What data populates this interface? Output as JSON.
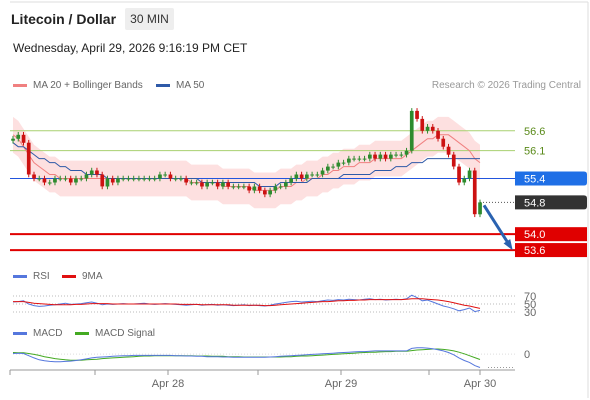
{
  "header": {
    "title": "Litecoin / Dollar",
    "interval": "30 MIN",
    "datetime": "Wednesday, April 29, 2026 9:16:19 PM CET"
  },
  "legend": {
    "price": [
      {
        "label": "MA 20 + Bollinger Bands",
        "color": "#f08080"
      },
      {
        "label": "MA 50",
        "color": "#2f5aa8"
      }
    ],
    "rsi": [
      {
        "label": "RSI",
        "color": "#5577dd"
      },
      {
        "label": "9MA",
        "color": "#e01010"
      }
    ],
    "macd": [
      {
        "label": "MACD",
        "color": "#5577dd"
      },
      {
        "label": "MACD Signal",
        "color": "#44aa22"
      }
    ]
  },
  "copyright": "Research © 2026 Trading Central",
  "colors": {
    "up": "#2e8b2e",
    "down": "#cc1111",
    "resistance": "#a8d070",
    "support": "#e00000",
    "pivot": "#2255dd",
    "current_price_bg": "#333333",
    "band_fill": "#fde0e0",
    "arrow": "#2a62b0"
  },
  "chart_data": [
    {
      "type": "candlestick",
      "name": "price",
      "x_ticks": [
        "Apr 28",
        "Apr 29",
        "Apr 30"
      ],
      "ylim": [
        53.3,
        57.5
      ],
      "levels": [
        {
          "label": "56.6",
          "value": 56.6,
          "kind": "resistance"
        },
        {
          "label": "56.1",
          "value": 56.1,
          "kind": "resistance"
        },
        {
          "label": "55.4",
          "value": 55.4,
          "kind": "pivot"
        },
        {
          "label": "54.8",
          "value": 54.8,
          "kind": "current"
        },
        {
          "label": "54.0",
          "value": 54.0,
          "kind": "support"
        },
        {
          "label": "53.6",
          "value": 53.6,
          "kind": "support"
        }
      ],
      "closes": [
        56.4,
        56.5,
        56.3,
        55.5,
        55.4,
        55.4,
        55.3,
        55.3,
        55.4,
        55.4,
        55.4,
        55.3,
        55.4,
        55.4,
        55.5,
        55.6,
        55.5,
        55.2,
        55.4,
        55.3,
        55.4,
        55.4,
        55.4,
        55.4,
        55.4,
        55.4,
        55.4,
        55.4,
        55.5,
        55.5,
        55.4,
        55.4,
        55.4,
        55.3,
        55.3,
        55.3,
        55.2,
        55.3,
        55.3,
        55.2,
        55.3,
        55.2,
        55.2,
        55.2,
        55.2,
        55.1,
        55.2,
        55.1,
        55.0,
        55.1,
        55.2,
        55.2,
        55.3,
        55.4,
        55.5,
        55.4,
        55.5,
        55.5,
        55.5,
        55.6,
        55.7,
        55.7,
        55.8,
        55.8,
        55.9,
        55.9,
        55.9,
        55.9,
        56.0,
        55.9,
        56.0,
        55.9,
        56.0,
        56.0,
        56.0,
        56.1,
        57.1,
        56.9,
        56.6,
        56.7,
        56.6,
        56.4,
        56.2,
        56.0,
        55.7,
        55.3,
        55.4,
        55.6,
        54.5,
        54.8
      ],
      "ma20": [
        56.5,
        56.4,
        56.2,
        56.0,
        55.8,
        55.7,
        55.6,
        55.5,
        55.5,
        55.4,
        55.4,
        55.4,
        55.4,
        55.4,
        55.4,
        55.4,
        55.4,
        55.4,
        55.4,
        55.4,
        55.4,
        55.4,
        55.4,
        55.4,
        55.4,
        55.4,
        55.4,
        55.4,
        55.4,
        55.4,
        55.4,
        55.4,
        55.4,
        55.4,
        55.3,
        55.3,
        55.3,
        55.3,
        55.3,
        55.3,
        55.2,
        55.2,
        55.2,
        55.2,
        55.2,
        55.2,
        55.1,
        55.1,
        55.1,
        55.1,
        55.1,
        55.2,
        55.2,
        55.2,
        55.3,
        55.3,
        55.4,
        55.4,
        55.4,
        55.5,
        55.5,
        55.6,
        55.6,
        55.7,
        55.7,
        55.7,
        55.8,
        55.8,
        55.8,
        55.9,
        55.9,
        55.9,
        55.9,
        55.9,
        55.9,
        56.0,
        56.1,
        56.2,
        56.3,
        56.4,
        56.4,
        56.5,
        56.5,
        56.5,
        56.4,
        56.3,
        56.2,
        56.1,
        55.9,
        55.8
      ],
      "ma50": [
        56.3,
        56.2,
        56.2,
        56.1,
        56.0,
        55.9,
        55.9,
        55.8,
        55.8,
        55.7,
        55.7,
        55.6,
        55.6,
        55.6,
        55.5,
        55.5,
        55.5,
        55.5,
        55.4,
        55.4,
        55.4,
        55.4,
        55.4,
        55.4,
        55.4,
        55.4,
        55.4,
        55.4,
        55.4,
        55.4,
        55.4,
        55.4,
        55.4,
        55.4,
        55.4,
        55.4,
        55.3,
        55.3,
        55.3,
        55.3,
        55.3,
        55.3,
        55.3,
        55.3,
        55.3,
        55.3,
        55.3,
        55.2,
        55.2,
        55.2,
        55.2,
        55.3,
        55.3,
        55.3,
        55.3,
        55.3,
        55.3,
        55.4,
        55.4,
        55.4,
        55.4,
        55.4,
        55.4,
        55.5,
        55.5,
        55.5,
        55.5,
        55.5,
        55.5,
        55.6,
        55.6,
        55.6,
        55.6,
        55.7,
        55.7,
        55.7,
        55.8,
        55.8,
        55.8,
        55.9,
        55.9,
        55.9,
        55.9,
        55.9,
        55.9,
        55.9,
        55.9,
        55.9,
        55.9,
        55.9
      ],
      "projection": {
        "from": 54.8,
        "to": 53.6
      }
    },
    {
      "type": "line",
      "name": "RSI",
      "y_ticks": [
        "70",
        "50",
        "30"
      ],
      "ylim": [
        20,
        85
      ],
      "series": [
        {
          "name": "RSI",
          "values": [
            55,
            56,
            58,
            50,
            46,
            44,
            45,
            47,
            48,
            50,
            52,
            49,
            50,
            51,
            53,
            55,
            52,
            48,
            50,
            49,
            50,
            51,
            50,
            50,
            51,
            52,
            50,
            49,
            50,
            51,
            50,
            49,
            48,
            47,
            48,
            49,
            47,
            48,
            49,
            47,
            48,
            47,
            46,
            47,
            48,
            46,
            47,
            46,
            45,
            47,
            50,
            52,
            54,
            56,
            57,
            55,
            56,
            57,
            56,
            58,
            60,
            59,
            61,
            60,
            62,
            61,
            60,
            62,
            63,
            61,
            62,
            60,
            61,
            62,
            61,
            63,
            72,
            66,
            58,
            60,
            55,
            50,
            45,
            42,
            38,
            33,
            36,
            40,
            31,
            34
          ]
        },
        {
          "name": "9MA",
          "values": [
            56,
            56,
            56,
            54,
            52,
            51,
            50,
            49,
            48,
            48,
            48,
            48,
            49,
            49,
            50,
            51,
            51,
            51,
            51,
            50,
            50,
            50,
            50,
            50,
            50,
            50,
            50,
            50,
            50,
            50,
            50,
            50,
            49,
            49,
            49,
            49,
            48,
            48,
            48,
            48,
            48,
            48,
            47,
            47,
            47,
            47,
            47,
            47,
            46,
            46,
            47,
            48,
            49,
            50,
            51,
            52,
            53,
            54,
            55,
            56,
            56,
            57,
            58,
            58,
            59,
            59,
            60,
            60,
            61,
            61,
            61,
            61,
            61,
            61,
            61,
            62,
            63,
            63,
            63,
            62,
            61,
            60,
            58,
            56,
            53,
            50,
            47,
            45,
            42,
            39
          ]
        }
      ]
    },
    {
      "type": "line",
      "name": "MACD",
      "y_ticks": [
        "0"
      ],
      "ylim": [
        -0.5,
        0.35
      ],
      "series": [
        {
          "name": "MACD",
          "values": [
            0.02,
            0.03,
            0.02,
            -0.05,
            -0.12,
            -0.18,
            -0.21,
            -0.23,
            -0.24,
            -0.24,
            -0.23,
            -0.22,
            -0.2,
            -0.18,
            -0.15,
            -0.12,
            -0.1,
            -0.09,
            -0.08,
            -0.07,
            -0.06,
            -0.05,
            -0.05,
            -0.04,
            -0.04,
            -0.04,
            -0.04,
            -0.04,
            -0.04,
            -0.04,
            -0.04,
            -0.05,
            -0.05,
            -0.06,
            -0.06,
            -0.07,
            -0.07,
            -0.08,
            -0.08,
            -0.08,
            -0.09,
            -0.09,
            -0.1,
            -0.1,
            -0.1,
            -0.1,
            -0.1,
            -0.1,
            -0.1,
            -0.09,
            -0.08,
            -0.07,
            -0.06,
            -0.05,
            -0.04,
            -0.03,
            -0.02,
            -0.01,
            0.0,
            0.01,
            0.02,
            0.03,
            0.04,
            0.05,
            0.06,
            0.07,
            0.08,
            0.08,
            0.09,
            0.1,
            0.1,
            0.1,
            0.1,
            0.1,
            0.1,
            0.1,
            0.18,
            0.2,
            0.2,
            0.19,
            0.17,
            0.14,
            0.1,
            0.05,
            -0.02,
            -0.12,
            -0.2,
            -0.26,
            -0.36,
            -0.42
          ]
        },
        {
          "name": "MACD Signal",
          "values": [
            0.05,
            0.04,
            0.04,
            0.02,
            -0.01,
            -0.04,
            -0.08,
            -0.11,
            -0.14,
            -0.16,
            -0.18,
            -0.19,
            -0.19,
            -0.19,
            -0.18,
            -0.17,
            -0.16,
            -0.14,
            -0.13,
            -0.12,
            -0.11,
            -0.1,
            -0.09,
            -0.08,
            -0.07,
            -0.06,
            -0.06,
            -0.05,
            -0.05,
            -0.05,
            -0.05,
            -0.05,
            -0.05,
            -0.05,
            -0.05,
            -0.06,
            -0.06,
            -0.06,
            -0.07,
            -0.07,
            -0.07,
            -0.08,
            -0.08,
            -0.08,
            -0.09,
            -0.09,
            -0.09,
            -0.09,
            -0.09,
            -0.09,
            -0.09,
            -0.09,
            -0.08,
            -0.08,
            -0.07,
            -0.06,
            -0.06,
            -0.05,
            -0.04,
            -0.03,
            -0.02,
            -0.01,
            0.0,
            0.01,
            0.02,
            0.03,
            0.04,
            0.05,
            0.06,
            0.06,
            0.07,
            0.08,
            0.08,
            0.09,
            0.09,
            0.09,
            0.11,
            0.13,
            0.14,
            0.15,
            0.16,
            0.16,
            0.15,
            0.13,
            0.1,
            0.06,
            0.01,
            -0.05,
            -0.11,
            -0.17
          ]
        }
      ]
    }
  ]
}
